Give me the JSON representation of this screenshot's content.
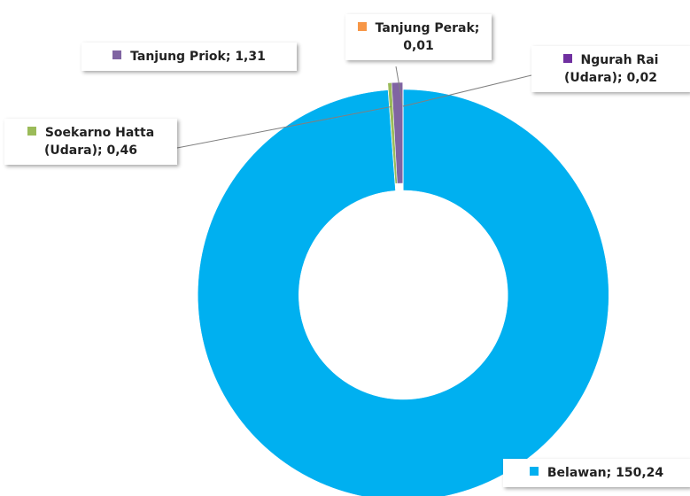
{
  "chart_data": {
    "type": "donut",
    "categories": [
      "Belawan",
      "Soekarno Hatta (Udara)",
      "Tanjung Priok",
      "Tanjung Perak",
      "Ngurah Rai (Udara)"
    ],
    "values": [
      150.24,
      0.46,
      1.31,
      0.01,
      0.02
    ],
    "value_labels": [
      "150,24",
      "0,46",
      "1,31",
      "0,01",
      "0,02"
    ],
    "label_separator": "; ",
    "colors": [
      "#00b0f0",
      "#9bbb59",
      "#8064a2",
      "#f79646",
      "#7030a0"
    ]
  }
}
